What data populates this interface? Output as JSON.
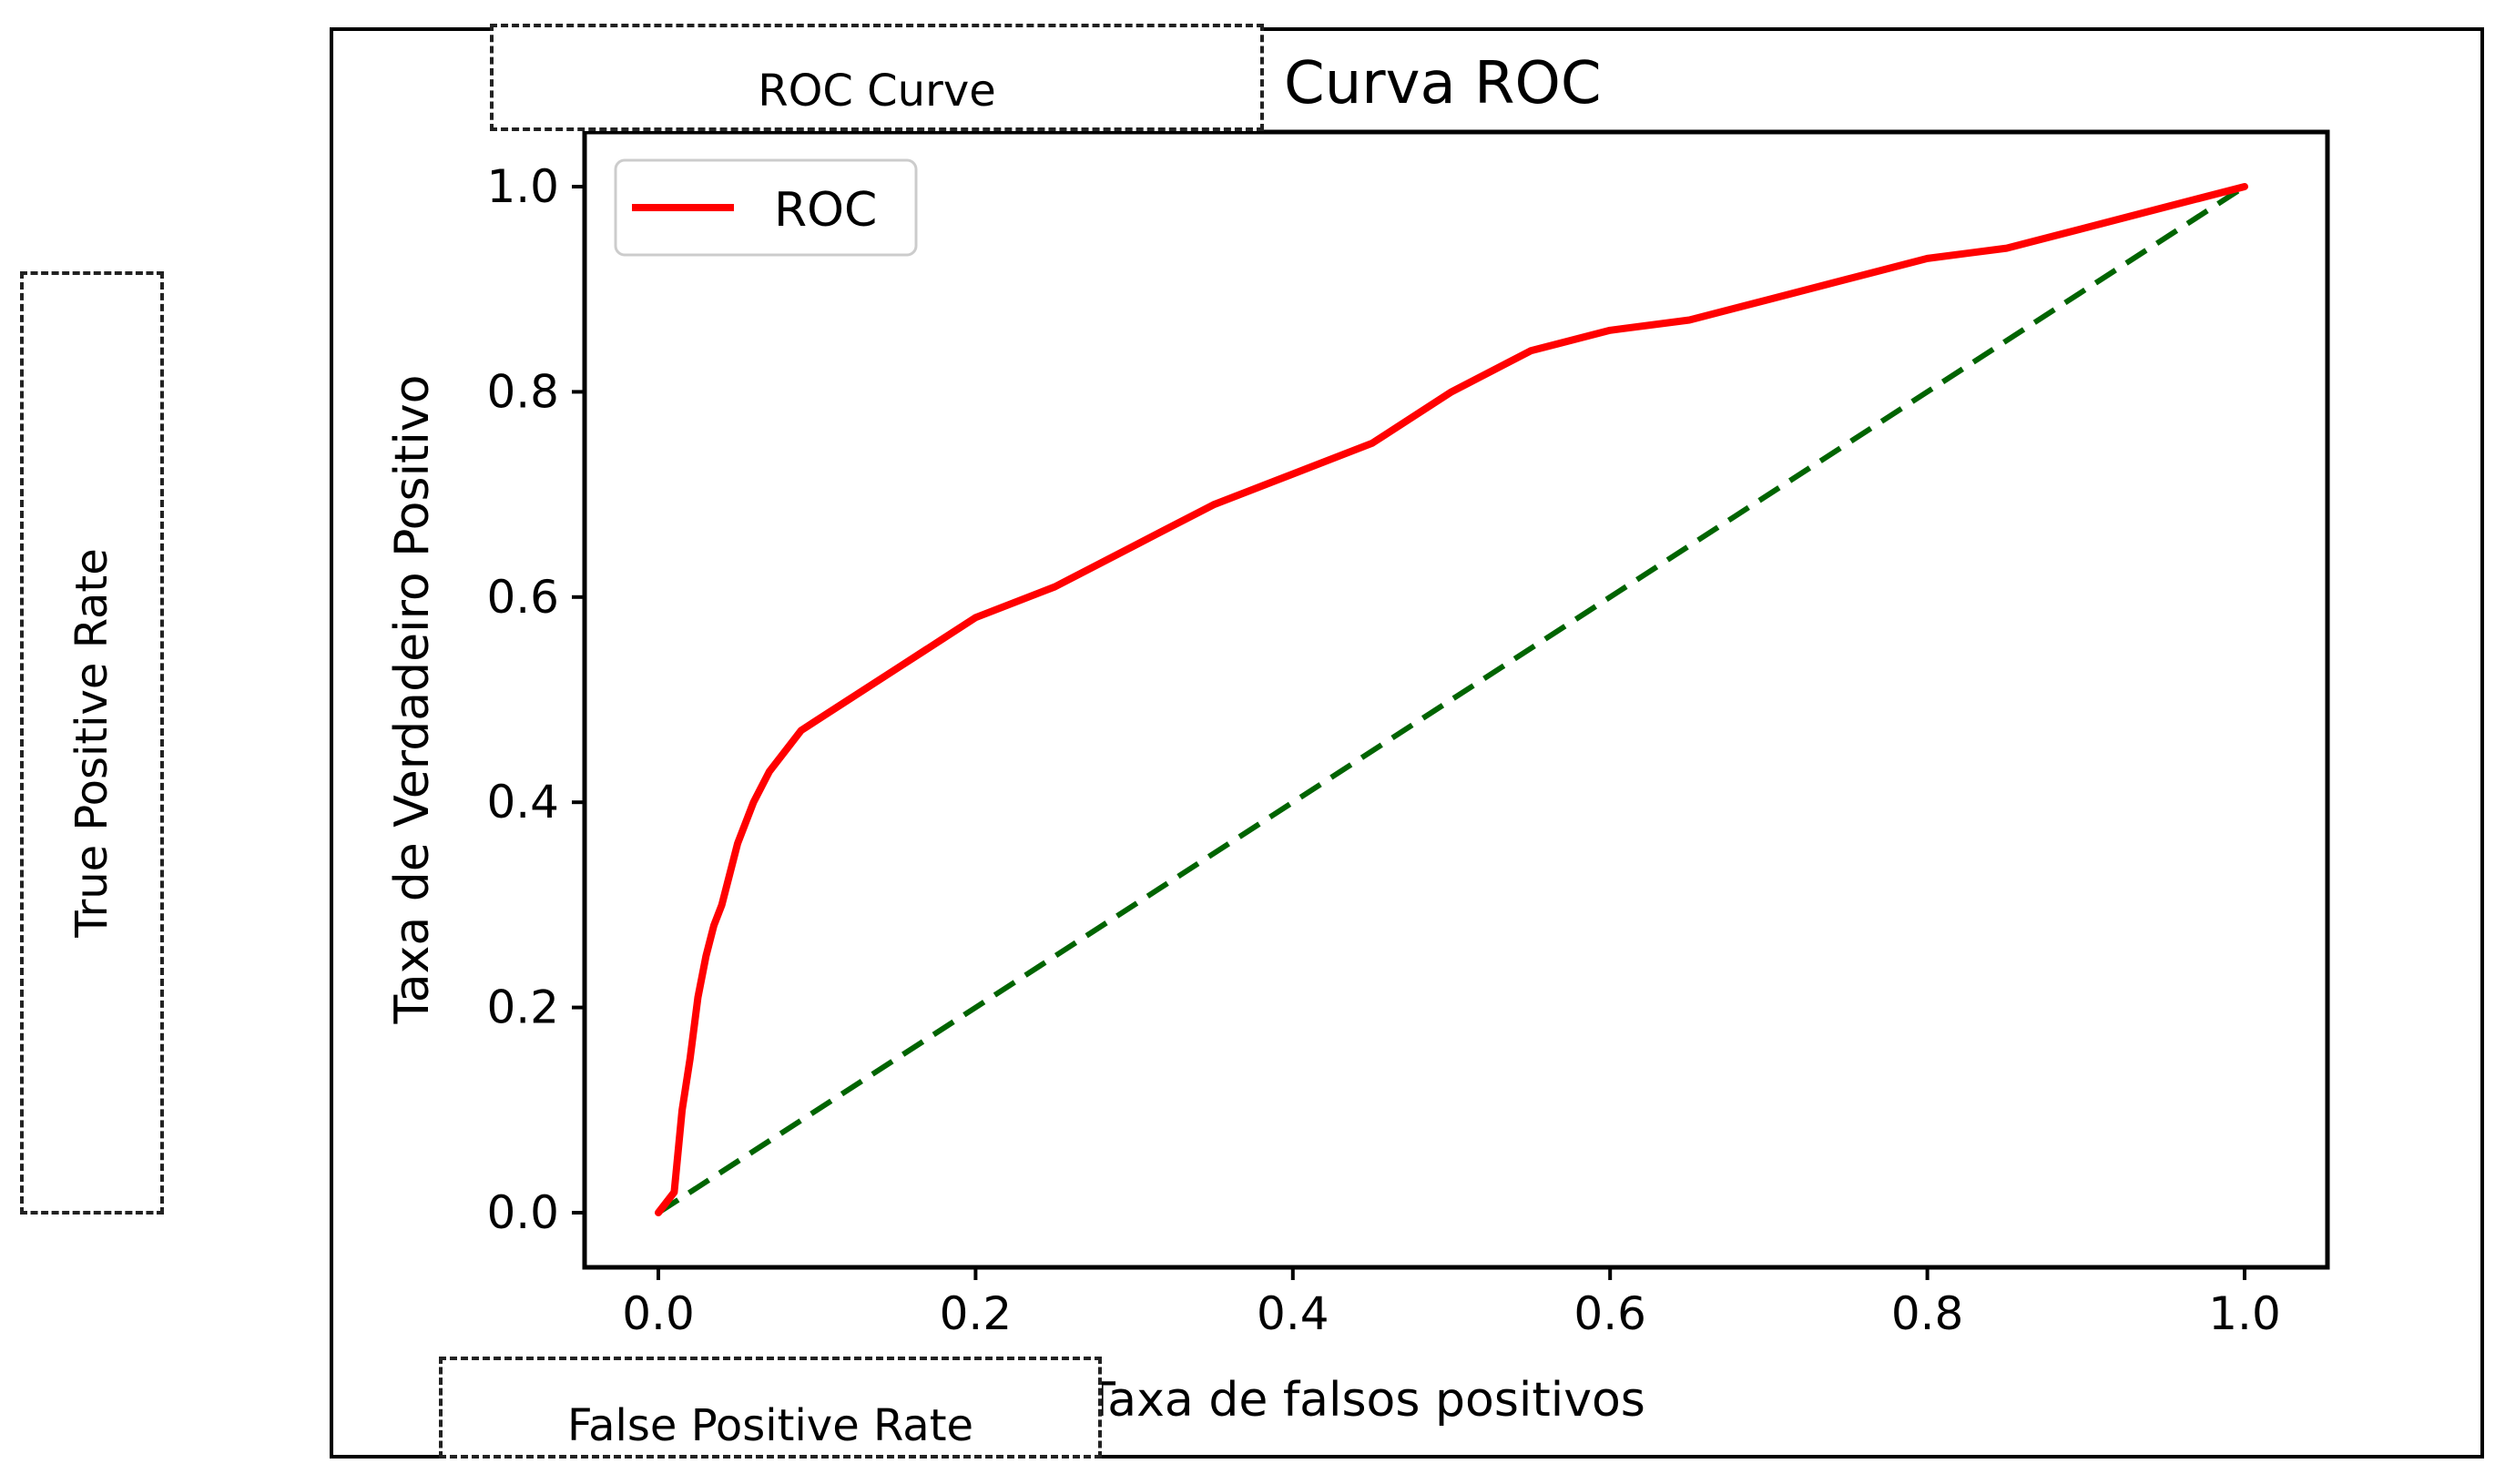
{
  "chart_data": {
    "type": "line",
    "title": "Curva ROC",
    "xlabel": "Taxa de falsos positivos",
    "ylabel": "Taxa de Verdadeiro Positivo",
    "xlim": [
      0.0,
      1.0
    ],
    "ylim": [
      0.0,
      1.0
    ],
    "xticks": [
      "0.0",
      "0.2",
      "0.4",
      "0.6",
      "0.8",
      "1.0"
    ],
    "yticks": [
      "0.0",
      "0.2",
      "0.4",
      "0.6",
      "0.8",
      "1.0"
    ],
    "legend": {
      "position": "top-left",
      "entries": [
        "ROC"
      ]
    },
    "grid": false,
    "series": [
      {
        "name": "ROC",
        "color": "#ff0000",
        "style": "solid",
        "x": [
          0.0,
          0.01,
          0.015,
          0.02,
          0.025,
          0.03,
          0.035,
          0.04,
          0.05,
          0.06,
          0.07,
          0.08,
          0.09,
          0.1,
          0.12,
          0.15,
          0.18,
          0.2,
          0.25,
          0.3,
          0.35,
          0.4,
          0.45,
          0.5,
          0.55,
          0.6,
          0.65,
          0.7,
          0.75,
          0.8,
          0.85,
          0.9,
          0.95,
          1.0
        ],
        "y": [
          0.0,
          0.02,
          0.1,
          0.15,
          0.21,
          0.25,
          0.28,
          0.3,
          0.36,
          0.4,
          0.43,
          0.45,
          0.47,
          0.48,
          0.5,
          0.53,
          0.56,
          0.58,
          0.61,
          0.65,
          0.69,
          0.72,
          0.75,
          0.8,
          0.84,
          0.86,
          0.87,
          0.89,
          0.91,
          0.93,
          0.94,
          0.96,
          0.98,
          1.0
        ]
      },
      {
        "name": "",
        "color": "#006400",
        "style": "dashed",
        "x": [
          0.0,
          1.0
        ],
        "y": [
          0.0,
          1.0
        ]
      }
    ]
  },
  "annotations": {
    "title_box": "ROC Curve",
    "x_box": "False Positive Rate",
    "y_box": "True Positive Rate"
  }
}
